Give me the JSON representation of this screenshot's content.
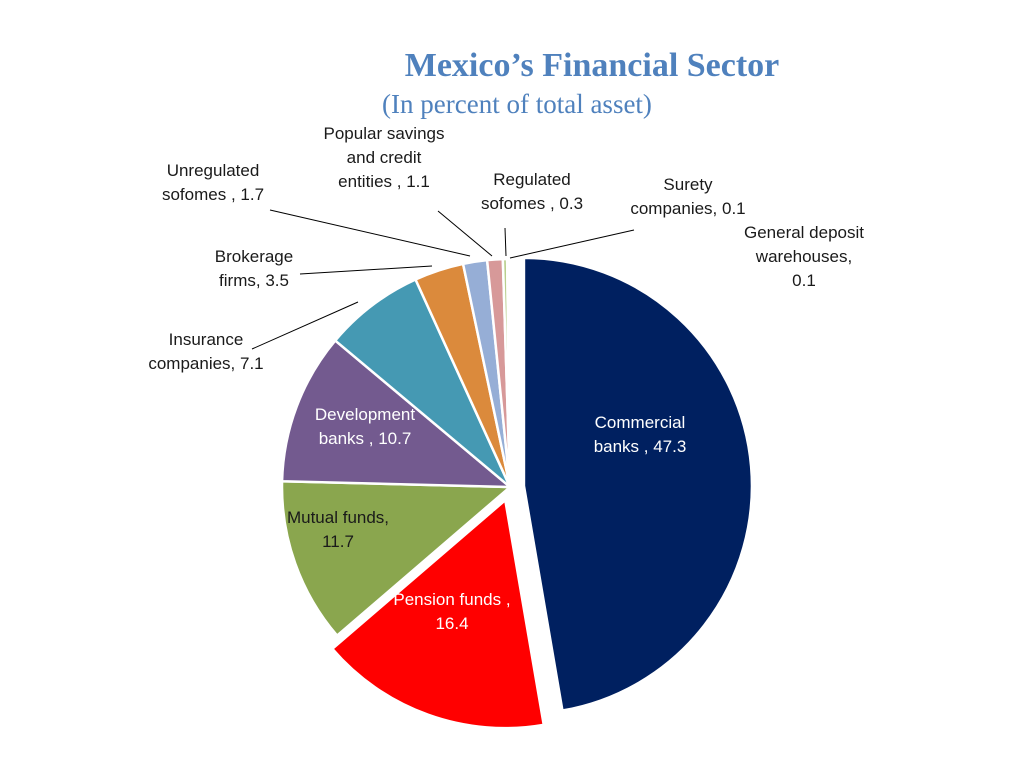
{
  "chart_data": {
    "type": "pie",
    "title": "Mexico’s Financial Sector",
    "subtitle": "(In percent of total asset)",
    "slices": [
      {
        "name": "Commercial banks",
        "value": 47.3,
        "color": "#002060",
        "label_lines": [
          "Commercial",
          "banks , 47.3"
        ],
        "light": true
      },
      {
        "name": "Pension funds",
        "value": 16.4,
        "color": "#ff0000",
        "label_lines": [
          "Pension funds ,",
          "16.4"
        ],
        "light": true
      },
      {
        "name": "Mutual funds",
        "value": 11.7,
        "color": "#8aa64e",
        "label_lines": [
          "Mutual funds,",
          "11.7"
        ],
        "light": false
      },
      {
        "name": "Development banks",
        "value": 10.7,
        "color": "#735a8f",
        "label_lines": [
          "Development",
          "banks , 10.7"
        ],
        "light": true
      },
      {
        "name": "Insurance companies",
        "value": 7.1,
        "color": "#4599b3",
        "label_lines": [
          "Insurance",
          "companies, 7.1"
        ],
        "light": false
      },
      {
        "name": "Brokerage firms",
        "value": 3.5,
        "color": "#db8a3c",
        "label_lines": [
          "Brokerage",
          "firms, 3.5"
        ],
        "light": false
      },
      {
        "name": "Unregulated sofomes",
        "value": 1.7,
        "color": "#96aed6",
        "label_lines": [
          "Unregulated",
          "sofomes , 1.7"
        ],
        "light": false
      },
      {
        "name": "Popular savings and credit entities",
        "value": 1.1,
        "color": "#d79999",
        "label_lines": [
          "Popular savings",
          "and credit",
          "entities , 1.1"
        ],
        "light": false
      },
      {
        "name": "Regulated sofomes",
        "value": 0.3,
        "color": "#b9cf8d",
        "label_lines": [
          "Regulated",
          "sofomes , 0.3"
        ],
        "light": false
      },
      {
        "name": "Surety companies",
        "value": 0.1,
        "color": "#a794c4",
        "label_lines": [
          "Surety",
          "companies, 0.1"
        ],
        "light": false
      },
      {
        "name": "General deposit warehouses",
        "value": 0.1,
        "color": "#7fc4d6",
        "label_lines": [
          "General deposit",
          "warehouses,",
          "0.1"
        ],
        "light": false
      }
    ]
  }
}
